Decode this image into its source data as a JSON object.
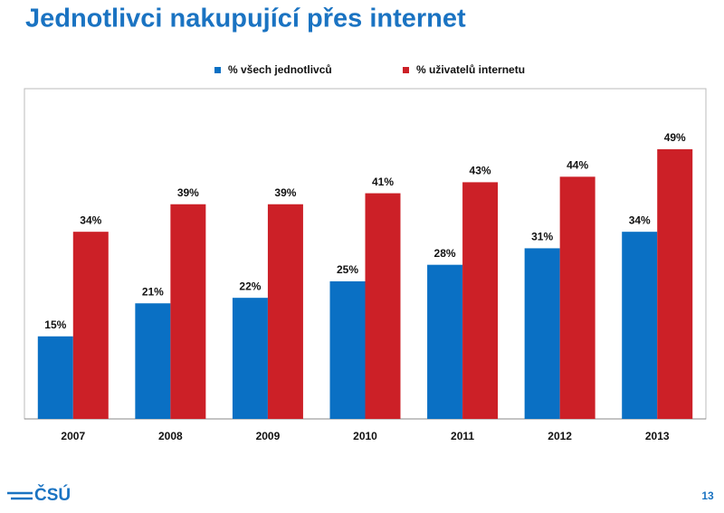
{
  "chart_data": {
    "type": "bar",
    "title": "Jednotlivci nakupující přes internet",
    "categories": [
      "2007",
      "2008",
      "2009",
      "2010",
      "2011",
      "2012",
      "2013"
    ],
    "series": [
      {
        "name": "% všech jednotlivců",
        "color": "#0a70c4",
        "values": [
          15,
          21,
          22,
          25,
          28,
          31,
          34
        ],
        "value_labels": [
          "15%",
          "21%",
          "22%",
          "25%",
          "28%",
          "31%",
          "34%"
        ]
      },
      {
        "name": "% uživatelů internetu",
        "color": "#cc2027",
        "values": [
          34,
          39,
          39,
          41,
          43,
          44,
          49
        ],
        "value_labels": [
          "34%",
          "39%",
          "39%",
          "41%",
          "43%",
          "44%",
          "49%"
        ]
      }
    ],
    "ylim": [
      0,
      60
    ],
    "legend": "top"
  },
  "footer": {
    "logo": "ČSÚ",
    "page_number": "13"
  }
}
